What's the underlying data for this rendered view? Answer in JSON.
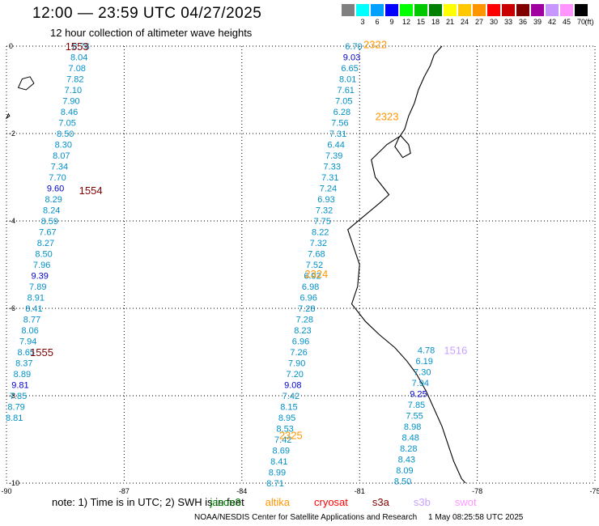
{
  "header": {
    "title": "12:00 — 23:59 UTC 04/27/2025",
    "subtitle": "12 hour collection of altimeter wave heights"
  },
  "scale": {
    "unit": "(ft)",
    "bins": [
      {
        "label": "",
        "color": "#808080"
      },
      {
        "label": "3",
        "color": "#00ffff"
      },
      {
        "label": "6",
        "color": "#00a0ff"
      },
      {
        "label": "9",
        "color": "#0000ff"
      },
      {
        "label": "12",
        "color": "#00ff00"
      },
      {
        "label": "15",
        "color": "#00c800"
      },
      {
        "label": "18",
        "color": "#008000"
      },
      {
        "label": "21",
        "color": "#ffff00"
      },
      {
        "label": "24",
        "color": "#ffc800"
      },
      {
        "label": "27",
        "color": "#ff9600"
      },
      {
        "label": "30",
        "color": "#ff0000"
      },
      {
        "label": "33",
        "color": "#c80000"
      },
      {
        "label": "36",
        "color": "#800000"
      },
      {
        "label": "39",
        "color": "#a000a0"
      },
      {
        "label": "42",
        "color": "#c896ff"
      },
      {
        "label": "45",
        "color": "#ff96ff"
      },
      {
        "label": "70",
        "color": "#000000"
      }
    ]
  },
  "axes": {
    "x_ticks": [
      -90,
      -87,
      -84,
      -81,
      -78,
      -75
    ],
    "x_tick_labels": [
      "-90",
      "-87",
      "-84",
      "-81",
      "-78",
      "-75"
    ],
    "y_ticks": [
      0,
      -2,
      -4,
      -6,
      -8,
      -10
    ],
    "y_tick_labels": [
      "0",
      "-2",
      "-4",
      "-6",
      "-8",
      "-10"
    ],
    "lon_range": [
      -90,
      -75
    ],
    "lat_range": [
      -10,
      0
    ],
    "grid": true
  },
  "colors": {
    "light": "#0090c8",
    "dark": "#0000cc",
    "jason": "#008000",
    "altika": "#ff9600",
    "cryosat": "#ff0000",
    "s3a": "#800000",
    "s3b": "#c8a0ff",
    "swot": "#ff96ff"
  },
  "passes": [
    {
      "label": "1553",
      "color": "#800000",
      "lon": -88.5,
      "lat": 0.0
    },
    {
      "label": "1554",
      "color": "#800000",
      "lon": -88.15,
      "lat": -3.3
    },
    {
      "label": "1555",
      "color": "#800000",
      "lon": -89.4,
      "lat": -7.0
    },
    {
      "label": "2322",
      "color": "#ff9600",
      "lon": -80.9,
      "lat": 0.05
    },
    {
      "label": "2323",
      "color": "#ff9600",
      "lon": -80.6,
      "lat": -1.6
    },
    {
      "label": "2324",
      "color": "#ff9600",
      "lon": -82.4,
      "lat": -5.2
    },
    {
      "label": "2325",
      "color": "#ff9600",
      "lon": -83.05,
      "lat": -8.9
    },
    {
      "label": "1516",
      "color": "#c8a0ff",
      "lon": -78.85,
      "lat": -6.95
    }
  ],
  "tracks": [
    {
      "name": "s3a-west",
      "points": [
        {
          "v": "8.76",
          "lon": -88.1,
          "lat": 0.0,
          "dark": false
        },
        {
          "v": "8.04",
          "lon": -88.15,
          "lat": -0.25,
          "dark": false
        },
        {
          "v": "7.08",
          "lon": -88.2,
          "lat": -0.5,
          "dark": false
        },
        {
          "v": "7.82",
          "lon": -88.25,
          "lat": -0.75,
          "dark": false
        },
        {
          "v": "7.10",
          "lon": -88.3,
          "lat": -1.0,
          "dark": false
        },
        {
          "v": "7.90",
          "lon": -88.35,
          "lat": -1.25,
          "dark": false
        },
        {
          "v": "8.46",
          "lon": -88.4,
          "lat": -1.5,
          "dark": false
        },
        {
          "v": "7.05",
          "lon": -88.45,
          "lat": -1.75,
          "dark": false
        },
        {
          "v": "8.50",
          "lon": -88.5,
          "lat": -2.0,
          "dark": false
        },
        {
          "v": "8.30",
          "lon": -88.55,
          "lat": -2.25,
          "dark": false
        },
        {
          "v": "8.07",
          "lon": -88.6,
          "lat": -2.5,
          "dark": false
        },
        {
          "v": "7.34",
          "lon": -88.65,
          "lat": -2.75,
          "dark": false
        },
        {
          "v": "7.70",
          "lon": -88.7,
          "lat": -3.0,
          "dark": false
        },
        {
          "v": "9.60",
          "lon": -88.75,
          "lat": -3.25,
          "dark": true
        },
        {
          "v": "8.29",
          "lon": -88.8,
          "lat": -3.5,
          "dark": false
        },
        {
          "v": "8.24",
          "lon": -88.85,
          "lat": -3.75,
          "dark": false
        },
        {
          "v": "8.59",
          "lon": -88.9,
          "lat": -4.0,
          "dark": false
        },
        {
          "v": "7.67",
          "lon": -88.95,
          "lat": -4.25,
          "dark": false
        },
        {
          "v": "8.27",
          "lon": -89.0,
          "lat": -4.5,
          "dark": false
        },
        {
          "v": "8.50",
          "lon": -89.05,
          "lat": -4.75,
          "dark": false
        },
        {
          "v": "7.96",
          "lon": -89.1,
          "lat": -5.0,
          "dark": false
        },
        {
          "v": "9.39",
          "lon": -89.15,
          "lat": -5.25,
          "dark": true
        },
        {
          "v": "7.89",
          "lon": -89.2,
          "lat": -5.5,
          "dark": false
        },
        {
          "v": "8.91",
          "lon": -89.25,
          "lat": -5.75,
          "dark": false
        },
        {
          "v": "8.41",
          "lon": -89.3,
          "lat": -6.0,
          "dark": false
        },
        {
          "v": "8.77",
          "lon": -89.35,
          "lat": -6.25,
          "dark": false
        },
        {
          "v": "8.06",
          "lon": -89.4,
          "lat": -6.5,
          "dark": false
        },
        {
          "v": "7.94",
          "lon": -89.45,
          "lat": -6.75,
          "dark": false
        },
        {
          "v": "8.65",
          "lon": -89.5,
          "lat": -7.0,
          "dark": false
        },
        {
          "v": "8.37",
          "lon": -89.55,
          "lat": -7.25,
          "dark": false
        },
        {
          "v": "8.89",
          "lon": -89.6,
          "lat": -7.5,
          "dark": false
        },
        {
          "v": "9.81",
          "lon": -89.65,
          "lat": -7.75,
          "dark": true
        },
        {
          "v": "7.85",
          "lon": -89.7,
          "lat": -8.0,
          "dark": false
        },
        {
          "v": "8.79",
          "lon": -89.75,
          "lat": -8.25,
          "dark": false
        },
        {
          "v": "8.81",
          "lon": -89.8,
          "lat": -8.5,
          "dark": false
        }
      ]
    },
    {
      "name": "altika-2322",
      "points": [
        {
          "v": "6.70",
          "lon": -81.15,
          "lat": 0.0,
          "dark": false
        },
        {
          "v": "9.03",
          "lon": -81.2,
          "lat": -0.25,
          "dark": true
        },
        {
          "v": "6.65",
          "lon": -81.25,
          "lat": -0.5,
          "dark": false
        },
        {
          "v": "8.01",
          "lon": -81.3,
          "lat": -0.75,
          "dark": false
        },
        {
          "v": "7.61",
          "lon": -81.35,
          "lat": -1.0,
          "dark": false
        },
        {
          "v": "7.05",
          "lon": -81.4,
          "lat": -1.25,
          "dark": false
        },
        {
          "v": "6.28",
          "lon": -81.45,
          "lat": -1.5,
          "dark": false
        },
        {
          "v": "7.56",
          "lon": -81.5,
          "lat": -1.75,
          "dark": false
        },
        {
          "v": "7.31",
          "lon": -81.55,
          "lat": -2.0,
          "dark": false
        },
        {
          "v": "6.44",
          "lon": -81.6,
          "lat": -2.25,
          "dark": false
        },
        {
          "v": "7.39",
          "lon": -81.65,
          "lat": -2.5,
          "dark": false
        },
        {
          "v": "7.33",
          "lon": -81.7,
          "lat": -2.75,
          "dark": false
        },
        {
          "v": "7.31",
          "lon": -81.75,
          "lat": -3.0,
          "dark": false
        },
        {
          "v": "7.24",
          "lon": -81.8,
          "lat": -3.25,
          "dark": false
        },
        {
          "v": "6.93",
          "lon": -81.85,
          "lat": -3.5,
          "dark": false
        },
        {
          "v": "7.32",
          "lon": -81.9,
          "lat": -3.75,
          "dark": false
        },
        {
          "v": "7.75",
          "lon": -81.95,
          "lat": -4.0,
          "dark": false
        },
        {
          "v": "8.22",
          "lon": -82.0,
          "lat": -4.25,
          "dark": false
        },
        {
          "v": "7.32",
          "lon": -82.05,
          "lat": -4.5,
          "dark": false
        },
        {
          "v": "7.68",
          "lon": -82.1,
          "lat": -4.75,
          "dark": false
        },
        {
          "v": "7.52",
          "lon": -82.15,
          "lat": -5.0,
          "dark": false
        },
        {
          "v": "6.92",
          "lon": -82.2,
          "lat": -5.25,
          "dark": false
        },
        {
          "v": "6.98",
          "lon": -82.25,
          "lat": -5.5,
          "dark": false
        },
        {
          "v": "6.96",
          "lon": -82.3,
          "lat": -5.75,
          "dark": false
        },
        {
          "v": "7.28",
          "lon": -82.35,
          "lat": -6.0,
          "dark": false
        },
        {
          "v": "7.28",
          "lon": -82.4,
          "lat": -6.25,
          "dark": false
        },
        {
          "v": "8.23",
          "lon": -82.45,
          "lat": -6.5,
          "dark": false
        },
        {
          "v": "6.96",
          "lon": -82.5,
          "lat": -6.75,
          "dark": false
        },
        {
          "v": "7.26",
          "lon": -82.55,
          "lat": -7.0,
          "dark": false
        },
        {
          "v": "7.90",
          "lon": -82.6,
          "lat": -7.25,
          "dark": false
        },
        {
          "v": "7.20",
          "lon": -82.65,
          "lat": -7.5,
          "dark": false
        },
        {
          "v": "9.08",
          "lon": -82.7,
          "lat": -7.75,
          "dark": true
        },
        {
          "v": "7.42",
          "lon": -82.75,
          "lat": -8.0,
          "dark": false
        },
        {
          "v": "8.15",
          "lon": -82.8,
          "lat": -8.25,
          "dark": false
        },
        {
          "v": "8.95",
          "lon": -82.85,
          "lat": -8.5,
          "dark": false
        },
        {
          "v": "8.53",
          "lon": -82.9,
          "lat": -8.75,
          "dark": false
        },
        {
          "v": "7.42",
          "lon": -82.95,
          "lat": -9.0,
          "dark": false
        },
        {
          "v": "8.69",
          "lon": -83.0,
          "lat": -9.25,
          "dark": false
        },
        {
          "v": "8.41",
          "lon": -83.05,
          "lat": -9.5,
          "dark": false
        },
        {
          "v": "8.99",
          "lon": -83.1,
          "lat": -9.75,
          "dark": false
        },
        {
          "v": "8.71",
          "lon": -83.15,
          "lat": -10.0,
          "dark": false
        }
      ]
    },
    {
      "name": "s3b-1516",
      "points": [
        {
          "v": "4.78",
          "lon": -79.3,
          "lat": -6.95,
          "dark": false
        },
        {
          "v": "6.19",
          "lon": -79.35,
          "lat": -7.2,
          "dark": false
        },
        {
          "v": "7.30",
          "lon": -79.4,
          "lat": -7.45,
          "dark": false
        },
        {
          "v": "7.94",
          "lon": -79.45,
          "lat": -7.7,
          "dark": false
        },
        {
          "v": "9.25",
          "lon": -79.5,
          "lat": -7.95,
          "dark": true
        },
        {
          "v": "7.85",
          "lon": -79.55,
          "lat": -8.2,
          "dark": false
        },
        {
          "v": "7.55",
          "lon": -79.6,
          "lat": -8.45,
          "dark": false
        },
        {
          "v": "8.98",
          "lon": -79.65,
          "lat": -8.7,
          "dark": false
        },
        {
          "v": "8.48",
          "lon": -79.7,
          "lat": -8.95,
          "dark": false
        },
        {
          "v": "8.28",
          "lon": -79.75,
          "lat": -9.2,
          "dark": false
        },
        {
          "v": "8.43",
          "lon": -79.8,
          "lat": -9.45,
          "dark": false
        },
        {
          "v": "8.09",
          "lon": -79.85,
          "lat": -9.7,
          "dark": false
        },
        {
          "v": "8.50",
          "lon": -79.9,
          "lat": -9.95,
          "dark": false
        }
      ]
    }
  ],
  "coastline": [
    [
      -78.9,
      0.0
    ],
    [
      -79.1,
      -0.2
    ],
    [
      -79.2,
      -0.45
    ],
    [
      -79.35,
      -0.7
    ],
    [
      -79.5,
      -1.0
    ],
    [
      -79.6,
      -1.3
    ],
    [
      -79.75,
      -1.6
    ],
    [
      -79.85,
      -1.9
    ],
    [
      -80.0,
      -2.1
    ],
    [
      -80.1,
      -2.3
    ],
    [
      -79.9,
      -2.55
    ],
    [
      -79.7,
      -2.45
    ],
    [
      -79.75,
      -2.25
    ],
    [
      -79.95,
      -2.05
    ],
    [
      -80.3,
      -2.25
    ],
    [
      -80.7,
      -2.6
    ],
    [
      -80.6,
      -3.0
    ],
    [
      -80.25,
      -3.4
    ],
    [
      -80.5,
      -3.6
    ],
    [
      -80.9,
      -3.9
    ],
    [
      -81.3,
      -4.2
    ],
    [
      -81.15,
      -4.6
    ],
    [
      -81.0,
      -5.0
    ],
    [
      -81.05,
      -5.5
    ],
    [
      -81.2,
      -5.9
    ],
    [
      -80.85,
      -6.3
    ],
    [
      -80.5,
      -6.6
    ],
    [
      -80.1,
      -6.9
    ],
    [
      -79.8,
      -7.2
    ],
    [
      -79.55,
      -7.5
    ],
    [
      -79.3,
      -7.9
    ],
    [
      -79.1,
      -8.3
    ],
    [
      -78.9,
      -8.7
    ],
    [
      -78.75,
      -9.1
    ],
    [
      -78.6,
      -9.5
    ],
    [
      -78.4,
      -9.9
    ],
    [
      -78.3,
      -10.0
    ]
  ],
  "galapagos": [
    [
      [
        -89.4,
        -0.7
      ],
      [
        -89.6,
        -0.75
      ],
      [
        -89.7,
        -0.95
      ],
      [
        -89.5,
        -1.0
      ],
      [
        -89.3,
        -0.85
      ]
    ],
    [
      [
        -89.95,
        -1.55
      ],
      [
        -90.0,
        -1.65
      ],
      [
        -89.92,
        -1.6
      ]
    ]
  ],
  "note": {
    "prefix": "note:  1) Time is in UTC;  2) SWH is in feet",
    "satellites": [
      {
        "label": "jason3",
        "color": "#008000"
      },
      {
        "label": "altika",
        "color": "#ff9600"
      },
      {
        "label": "cryosat",
        "color": "#ff0000"
      },
      {
        "label": "s3a",
        "color": "#800000"
      },
      {
        "label": "s3b",
        "color": "#c8a0ff"
      },
      {
        "label": "swot",
        "color": "#ff96ff"
      }
    ]
  },
  "footer": {
    "credit": "NOAA/NESDIS Center for Satellite Applications and Research",
    "timestamp": "1 May 08:25:58 UTC 2025"
  }
}
